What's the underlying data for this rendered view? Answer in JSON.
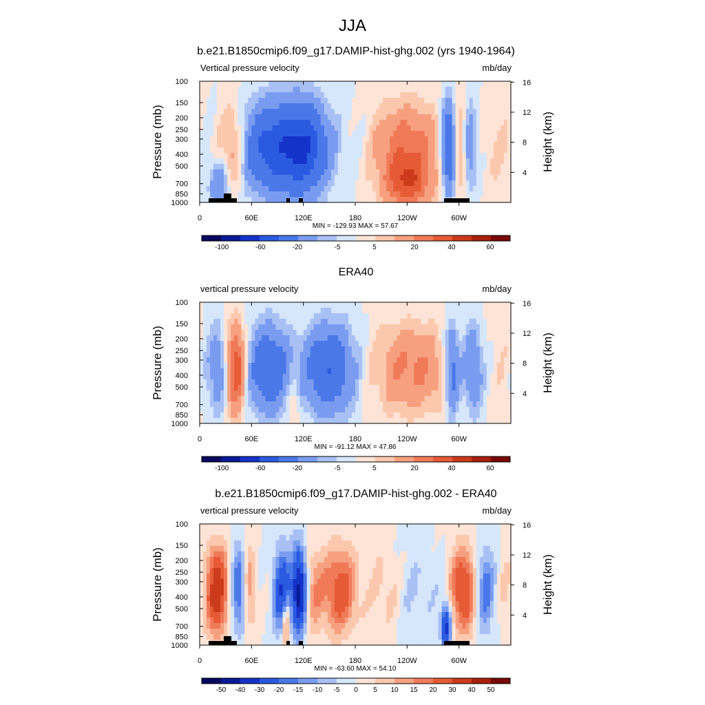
{
  "figure": {
    "title": "JJA"
  },
  "chart_data": [
    {
      "type": "heatmap",
      "title": "b.e21.B1850cmip6.f09_g17.DAMIP-hist-ghg.002 (yrs 1940-1964)",
      "left_label": "Vertical pressure velocity",
      "right_label": "mb/day",
      "ylabel": "Pressure (mb)",
      "y2label": "Height (km)",
      "x_ticks": [
        "0",
        "60E",
        "120E",
        "180",
        "120W",
        "60W"
      ],
      "y_ticks": [
        "100",
        "150",
        "200",
        "250",
        "300",
        "400",
        "500",
        "700",
        "850",
        "1000"
      ],
      "y2_ticks": [
        "16",
        "12",
        "8",
        "4"
      ],
      "stats": "MIN = -129.93  MAX =  57.67",
      "colorbar_labels": [
        "-100",
        "-60",
        "-20",
        "-5",
        "5",
        "20",
        "40",
        "60"
      ],
      "min": -129.93,
      "max": 57.67
    },
    {
      "type": "heatmap",
      "title": "ERA40",
      "left_label": "vertical pressure velocity",
      "right_label": "mb/day",
      "ylabel": "Pressure (mb)",
      "y2label": "Height (km)",
      "x_ticks": [
        "0",
        "60E",
        "120E",
        "180",
        "120W",
        "60W"
      ],
      "y_ticks": [
        "100",
        "150",
        "200",
        "250",
        "300",
        "400",
        "500",
        "700",
        "850",
        "1000"
      ],
      "y2_ticks": [
        "16",
        "12",
        "8",
        "4"
      ],
      "stats": "MIN = -91.12  MAX =  47.86",
      "colorbar_labels": [
        "-100",
        "-60",
        "-20",
        "-5",
        "5",
        "20",
        "40",
        "60"
      ],
      "min": -91.12,
      "max": 47.86
    },
    {
      "type": "heatmap",
      "title": "b.e21.B1850cmip6.f09_g17.DAMIP-hist-ghg.002 - ERA40",
      "left_label": "vertical pressure velocity",
      "right_label": "mb/day",
      "ylabel": "Pressure (mb)",
      "y2label": "Height (km)",
      "x_ticks": [
        "0",
        "60E",
        "120E",
        "180",
        "120W",
        "60W"
      ],
      "y_ticks": [
        "100",
        "150",
        "200",
        "250",
        "300",
        "400",
        "500",
        "700",
        "850",
        "1000"
      ],
      "y2_ticks": [
        "16",
        "12",
        "8",
        "4"
      ],
      "stats": "MIN = -63.60  MAX =  54.10",
      "colorbar_labels": [
        "-50",
        "-40",
        "-30",
        "-20",
        "-15",
        "-10",
        "-5",
        "0",
        "5",
        "10",
        "15",
        "20",
        "30",
        "40",
        "50"
      ],
      "min": -63.6,
      "max": 54.1
    }
  ]
}
